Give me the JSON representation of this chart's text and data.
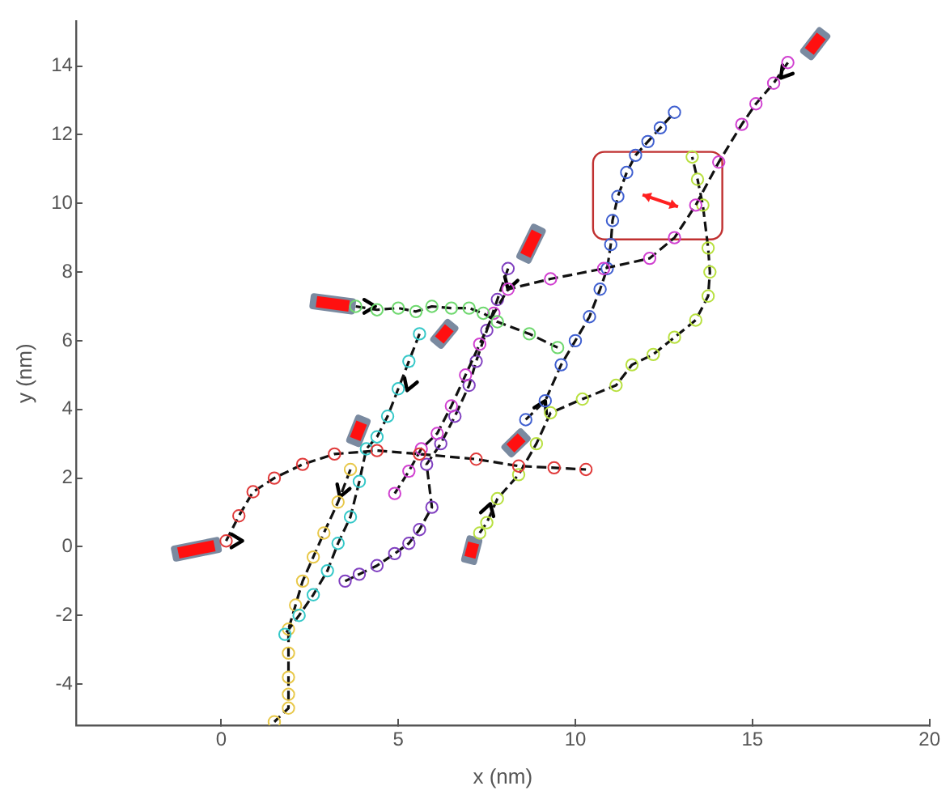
{
  "chart_data": {
    "type": "line",
    "xlabel": "x (nm)",
    "ylabel": "y (nm)",
    "xlim": [
      -4.1,
      20
    ],
    "ylim": [
      -5.2,
      15.3
    ],
    "xticks": [
      0,
      5,
      10,
      15,
      20
    ],
    "yticks": [
      -4,
      -2,
      0,
      2,
      4,
      6,
      8,
      10,
      12,
      14
    ],
    "grid": false,
    "legend": false,
    "marker": "circle",
    "line_style": "dashed",
    "series": [
      {
        "color": "#e03a3a",
        "x": [
          0.14,
          0.5,
          0.9,
          1.5,
          2.3,
          3.2,
          4.4,
          5.6,
          7.2,
          8.4,
          9.4,
          10.3
        ],
        "values": [
          0.17,
          0.9,
          1.6,
          2.0,
          2.4,
          2.7,
          2.8,
          2.7,
          2.55,
          2.35,
          2.3,
          2.25
        ]
      },
      {
        "color": "#6fd86f",
        "x": [
          3.8,
          4.4,
          5.0,
          5.5,
          5.95,
          6.5,
          7.0,
          7.4,
          7.8,
          8.7,
          9.5
        ],
        "values": [
          7.0,
          6.9,
          6.95,
          6.85,
          7.0,
          6.95,
          6.95,
          6.8,
          6.55,
          6.2,
          5.8
        ]
      },
      {
        "color": "#35c8c8",
        "x": [
          5.6,
          5.3,
          5.0,
          4.7,
          4.4,
          4.1,
          3.9,
          3.65,
          3.3,
          3.0,
          2.6,
          2.2,
          1.8
        ],
        "values": [
          6.2,
          5.4,
          4.6,
          3.8,
          3.2,
          2.85,
          1.9,
          0.87,
          0.1,
          -0.7,
          -1.4,
          -2.0,
          -2.55
        ]
      },
      {
        "color": "#e8c84a",
        "x": [
          3.65,
          3.3,
          2.9,
          2.6,
          2.3,
          2.1,
          1.9,
          1.9,
          1.9,
          1.9,
          1.9,
          1.5
        ],
        "values": [
          2.25,
          1.3,
          0.4,
          -0.3,
          -1.0,
          -1.7,
          -2.4,
          -3.1,
          -3.8,
          -4.3,
          -4.7,
          -5.1
        ]
      },
      {
        "color": "#d040d0",
        "x": [
          16.0,
          15.6,
          15.1,
          14.7,
          14.05,
          13.4,
          12.8,
          12.1,
          10.8,
          9.3,
          8.1,
          7.7,
          7.3,
          6.9,
          6.5,
          6.1,
          5.65,
          5.3,
          4.9
        ],
        "values": [
          14.1,
          13.5,
          12.9,
          12.3,
          11.2,
          9.95,
          9.0,
          8.4,
          8.1,
          7.8,
          7.5,
          6.8,
          5.9,
          5.0,
          4.1,
          3.3,
          2.85,
          2.2,
          1.55
        ]
      },
      {
        "color": "#8040c0",
        "x": [
          8.1,
          7.8,
          7.5,
          7.2,
          7.0,
          6.6,
          6.2,
          5.8,
          5.95,
          5.6,
          5.3,
          4.9,
          4.4,
          3.9,
          3.5
        ],
        "values": [
          8.1,
          7.2,
          6.3,
          5.4,
          4.7,
          3.8,
          3.0,
          2.4,
          1.15,
          0.5,
          0.1,
          -0.2,
          -0.55,
          -0.8,
          -1.0
        ]
      },
      {
        "color": "#4060d0",
        "x": [
          8.6,
          9.15,
          9.6,
          10.0,
          10.4,
          10.7,
          10.9,
          11.0,
          11.05,
          11.2,
          11.45,
          11.7,
          12.05,
          12.4,
          12.8
        ],
        "values": [
          3.7,
          4.25,
          5.3,
          6.0,
          6.7,
          7.5,
          8.1,
          8.8,
          9.5,
          10.2,
          10.9,
          11.4,
          11.8,
          12.2,
          12.65
        ]
      },
      {
        "color": "#b8e040",
        "x": [
          7.3,
          7.5,
          7.8,
          8.4,
          8.9,
          9.3,
          10.2,
          11.15,
          11.6,
          12.2,
          12.8,
          13.4,
          13.75,
          13.8,
          13.75,
          13.6,
          13.45,
          13.3
        ],
        "values": [
          0.4,
          0.7,
          1.4,
          2.1,
          3.0,
          3.9,
          4.3,
          4.7,
          5.3,
          5.6,
          6.1,
          6.6,
          7.3,
          8.0,
          8.7,
          9.95,
          10.7,
          11.35
        ]
      }
    ]
  }
}
